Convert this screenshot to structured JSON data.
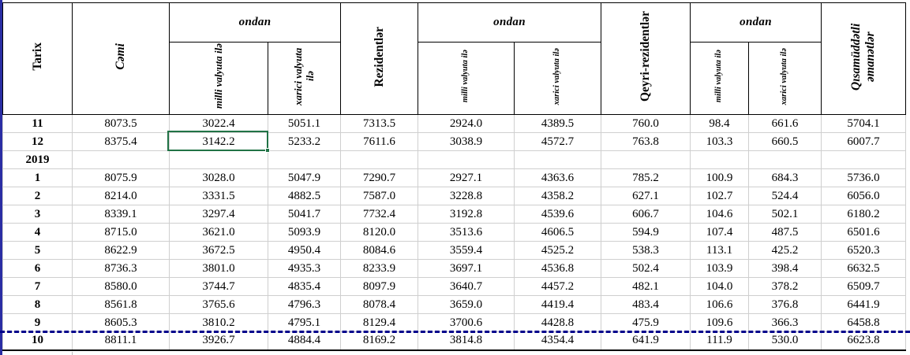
{
  "table": {
    "header": {
      "col_tarix": "Tarix",
      "col_cemi": "Cəmi",
      "group_ondan_1": "ondan",
      "sub_milli_1": "milli valyuta ilə",
      "sub_xarici_1": "xarici valyuta ilə",
      "col_rezidentler": "Rezidentlər",
      "group_ondan_2": "ondan",
      "sub_milli_2": "milli valyuta ilə",
      "sub_xarici_2": "xarici valyuta ilə",
      "col_qeyri_rezidentler": "Qeyri-rezidentlər",
      "group_ondan_3": "ondan",
      "sub_milli_3": "milli valyuta ilə",
      "sub_xarici_3": "xarici valyuta ilə",
      "col_qisamuddetli": "Qısamüddətli əmanətlər"
    },
    "rows": [
      {
        "label": "11",
        "values": [
          "8073.5",
          "3022.4",
          "5051.1",
          "7313.5",
          "2924.0",
          "4389.5",
          "760.0",
          "98.4",
          "661.6",
          "5704.1"
        ]
      },
      {
        "label": "12",
        "values": [
          "8375.4",
          "3142.2",
          "5233.2",
          "7611.6",
          "3038.9",
          "4572.7",
          "763.8",
          "103.3",
          "660.5",
          "6007.7"
        ]
      },
      {
        "label": "2019",
        "values": [
          "",
          "",
          "",
          "",
          "",
          "",
          "",
          "",
          "",
          ""
        ]
      },
      {
        "label": "1",
        "values": [
          "8075.9",
          "3028.0",
          "5047.9",
          "7290.7",
          "2927.1",
          "4363.6",
          "785.2",
          "100.9",
          "684.3",
          "5736.0"
        ]
      },
      {
        "label": "2",
        "values": [
          "8214.0",
          "3331.5",
          "4882.5",
          "7587.0",
          "3228.8",
          "4358.2",
          "627.1",
          "102.7",
          "524.4",
          "6056.0"
        ]
      },
      {
        "label": "3",
        "values": [
          "8339.1",
          "3297.4",
          "5041.7",
          "7732.4",
          "3192.8",
          "4539.6",
          "606.7",
          "104.6",
          "502.1",
          "6180.2"
        ]
      },
      {
        "label": "4",
        "values": [
          "8715.0",
          "3621.0",
          "5093.9",
          "8120.0",
          "3513.6",
          "4606.5",
          "594.9",
          "107.4",
          "487.5",
          "6501.6"
        ]
      },
      {
        "label": "5",
        "values": [
          "8622.9",
          "3672.5",
          "4950.4",
          "8084.6",
          "3559.4",
          "4525.2",
          "538.3",
          "113.1",
          "425.2",
          "6520.3"
        ]
      },
      {
        "label": "6",
        "values": [
          "8736.3",
          "3801.0",
          "4935.3",
          "8233.9",
          "3697.1",
          "4536.8",
          "502.4",
          "103.9",
          "398.4",
          "6632.5"
        ]
      },
      {
        "label": "7",
        "values": [
          "8580.0",
          "3744.7",
          "4835.4",
          "8097.9",
          "3640.7",
          "4457.2",
          "482.1",
          "104.0",
          "378.2",
          "6509.7"
        ]
      },
      {
        "label": "8",
        "values": [
          "8561.8",
          "3765.6",
          "4796.3",
          "8078.4",
          "3659.0",
          "4419.4",
          "483.4",
          "106.6",
          "376.8",
          "6441.9"
        ]
      },
      {
        "label": "9",
        "values": [
          "8605.3",
          "3810.2",
          "4795.1",
          "8129.4",
          "3700.6",
          "4428.8",
          "475.9",
          "109.6",
          "366.3",
          "6458.8"
        ]
      },
      {
        "label": "10",
        "values": [
          "8811.1",
          "3926.7",
          "4884.4",
          "8169.2",
          "3814.8",
          "4354.4",
          "641.9",
          "111.9",
          "530.0",
          "6623.8"
        ]
      }
    ],
    "selection": {
      "row_label": "12",
      "column": "milli valyuta ilə",
      "value": "3142.2",
      "color": "#217346"
    },
    "page_break_color": "#00008B",
    "window_border_color": "#2A2DA3"
  }
}
